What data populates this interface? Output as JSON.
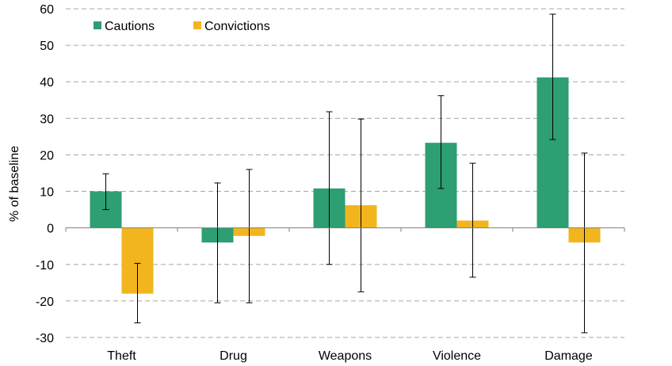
{
  "chart_data": {
    "type": "bar",
    "categories": [
      "Theft",
      "Drug",
      "Weapons",
      "Violence",
      "Damage"
    ],
    "series": [
      {
        "name": "Cautions",
        "color": "#2e9e73",
        "values": [
          10,
          -4,
          10.8,
          23.3,
          41.2
        ],
        "error_low": [
          5,
          -20.5,
          -10,
          10.8,
          24.2
        ],
        "error_high": [
          14.8,
          12.3,
          31.8,
          36.2,
          58.5
        ]
      },
      {
        "name": "Convictions",
        "color": "#f2b51e",
        "values": [
          -18,
          -2.2,
          6.2,
          2,
          -4
        ],
        "error_low": [
          -26,
          -20.5,
          -17.5,
          -13.5,
          -28.7
        ],
        "error_high": [
          -9.7,
          16,
          29.8,
          17.7,
          20.5
        ]
      }
    ],
    "ylabel": "% of baseline",
    "xlabel": "",
    "ylim": [
      -30,
      60
    ],
    "yticks": [
      "60",
      "50",
      "40",
      "30",
      "20",
      "10",
      "0",
      "-10",
      "-20",
      "-30"
    ],
    "grid": true,
    "legend_position": "top-left"
  }
}
